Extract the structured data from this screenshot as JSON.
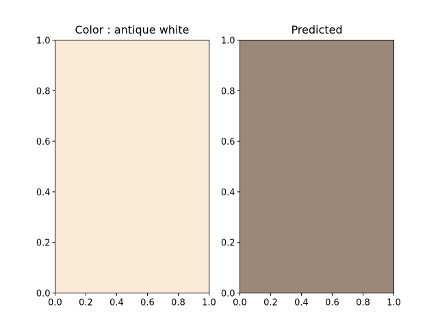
{
  "chart_data": [
    {
      "type": "heatmap",
      "title": "Color : antique white",
      "fill_color": "#faebd7",
      "xlim": [
        0.0,
        1.0
      ],
      "ylim": [
        0.0,
        1.0
      ],
      "xticks": [
        "0.0",
        "0.2",
        "0.4",
        "0.6",
        "0.8",
        "1.0"
      ],
      "yticks": [
        "0.0",
        "0.2",
        "0.4",
        "0.6",
        "0.8",
        "1.0"
      ],
      "grid": false
    },
    {
      "type": "heatmap",
      "title": "Predicted",
      "fill_color": "#9c8879",
      "xlim": [
        0.0,
        1.0
      ],
      "ylim": [
        0.0,
        1.0
      ],
      "xticks": [
        "0.0",
        "0.2",
        "0.4",
        "0.6",
        "0.8",
        "1.0"
      ],
      "yticks": [
        "0.0",
        "0.2",
        "0.4",
        "0.6",
        "0.8",
        "1.0"
      ],
      "grid": false
    }
  ]
}
